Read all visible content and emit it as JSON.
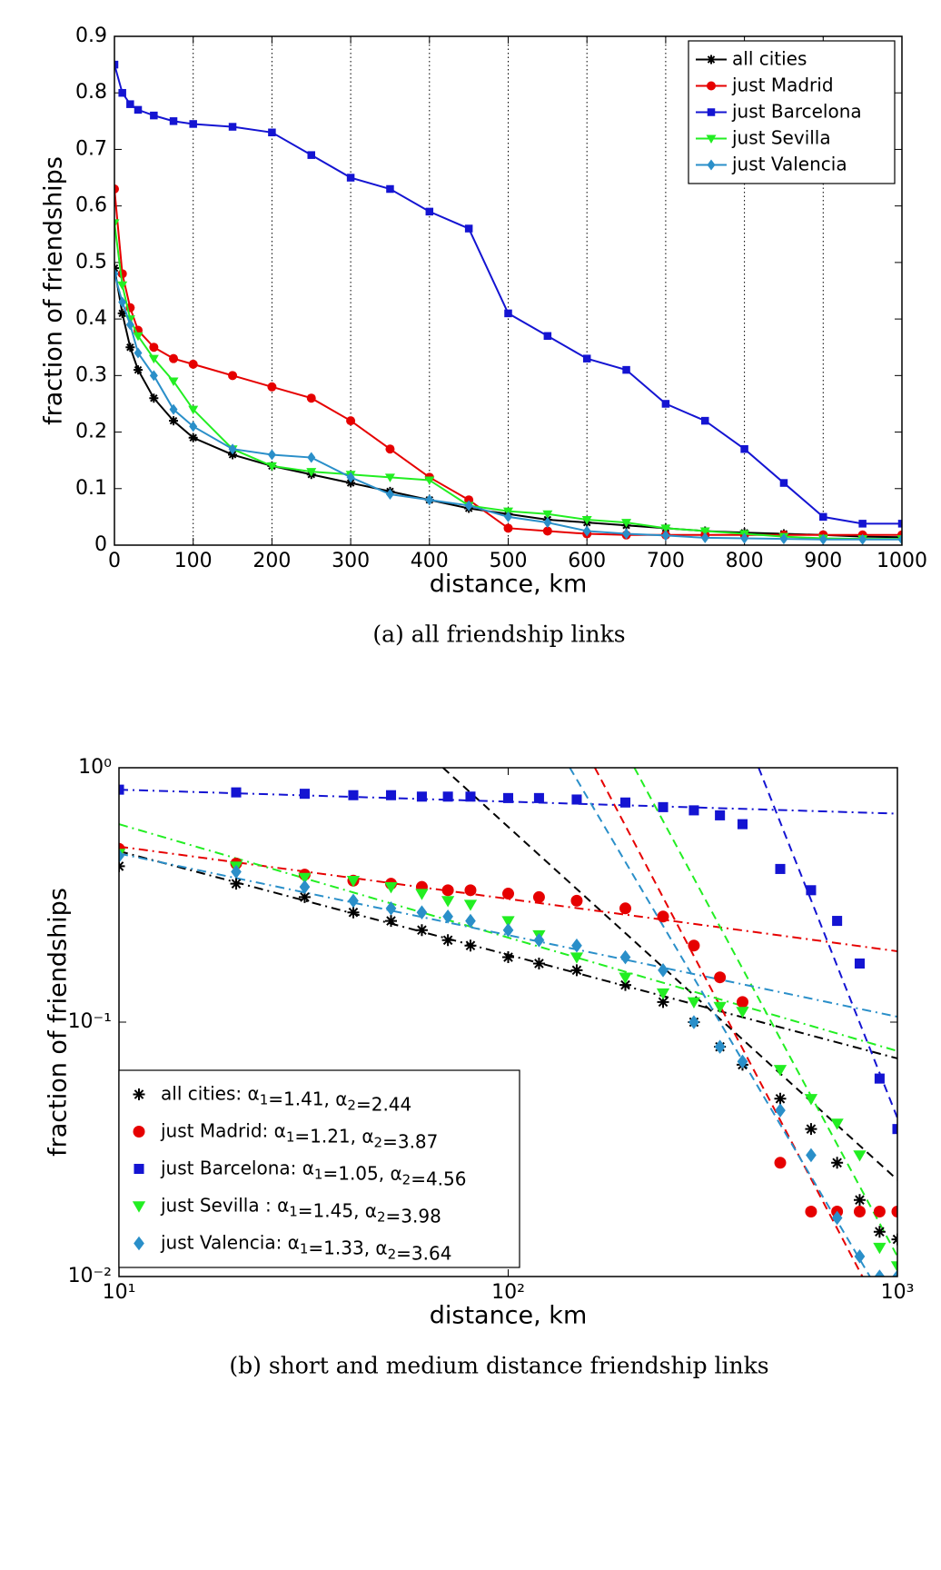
{
  "chart_data": [
    {
      "type": "line",
      "caption": "(a) all friendship links",
      "xlabel": "distance, km",
      "ylabel": "fraction of friendships",
      "xlim": [
        0,
        1000
      ],
      "ylim": [
        0,
        0.9
      ],
      "xticks": [
        0,
        100,
        200,
        300,
        400,
        500,
        600,
        700,
        800,
        900,
        1000
      ],
      "yticks": [
        0,
        0.1,
        0.2,
        0.3,
        0.4,
        0.5,
        0.6,
        0.7,
        0.8,
        0.9
      ],
      "grid": "x",
      "legend": "upper right",
      "x": [
        0,
        10,
        20,
        30,
        50,
        75,
        100,
        150,
        200,
        250,
        300,
        350,
        400,
        450,
        500,
        550,
        600,
        650,
        700,
        750,
        800,
        850,
        900,
        950,
        1000
      ],
      "series": [
        {
          "name": "all cities",
          "color": "#000000",
          "marker": "star",
          "values": [
            0.49,
            0.41,
            0.35,
            0.31,
            0.26,
            0.22,
            0.19,
            0.16,
            0.14,
            0.125,
            0.11,
            0.095,
            0.08,
            0.065,
            0.055,
            0.045,
            0.04,
            0.035,
            0.03,
            0.025,
            0.022,
            0.02,
            0.018,
            0.015,
            0.014
          ]
        },
        {
          "name": "just Madrid",
          "color": "#e60000",
          "marker": "circle",
          "values": [
            0.63,
            0.48,
            0.42,
            0.38,
            0.35,
            0.33,
            0.32,
            0.3,
            0.28,
            0.26,
            0.22,
            0.17,
            0.12,
            0.08,
            0.03,
            0.025,
            0.02,
            0.018,
            0.018,
            0.018,
            0.018,
            0.018,
            0.018,
            0.018,
            0.018
          ]
        },
        {
          "name": "just Barcelona",
          "color": "#1414d2",
          "marker": "square",
          "values": [
            0.85,
            0.8,
            0.78,
            0.77,
            0.76,
            0.75,
            0.745,
            0.74,
            0.73,
            0.69,
            0.65,
            0.63,
            0.59,
            0.56,
            0.41,
            0.37,
            0.33,
            0.31,
            0.25,
            0.22,
            0.17,
            0.11,
            0.05,
            0.038,
            0.038
          ]
        },
        {
          "name": "just Sevilla",
          "color": "#22ee22",
          "marker": "tri",
          "values": [
            0.57,
            0.46,
            0.4,
            0.37,
            0.33,
            0.29,
            0.24,
            0.17,
            0.14,
            0.13,
            0.125,
            0.12,
            0.115,
            0.07,
            0.06,
            0.055,
            0.045,
            0.04,
            0.03,
            0.025,
            0.02,
            0.015,
            0.012,
            0.011,
            0.011
          ]
        },
        {
          "name": "just Valencia",
          "color": "#2a8fc9",
          "marker": "diamond",
          "values": [
            0.48,
            0.43,
            0.39,
            0.34,
            0.3,
            0.24,
            0.21,
            0.17,
            0.16,
            0.155,
            0.12,
            0.09,
            0.08,
            0.07,
            0.05,
            0.04,
            0.025,
            0.02,
            0.017,
            0.013,
            0.012,
            0.011,
            0.01,
            0.01,
            0.01
          ]
        }
      ]
    },
    {
      "type": "scatter",
      "caption": "(b) short and medium distance friendship links",
      "xlabel": "distance, km",
      "ylabel": "fraction of friendships",
      "xscale": "log",
      "yscale": "log",
      "xlim": [
        10,
        1000
      ],
      "ylim": [
        0.01,
        1
      ],
      "xticks": [
        {
          "value": 10,
          "label": "10¹"
        },
        {
          "value": 100,
          "label": "10²"
        },
        {
          "value": 1000,
          "label": "10³"
        }
      ],
      "yticks": [
        {
          "value": 0.01,
          "label": "10⁻²"
        },
        {
          "value": 0.1,
          "label": "10⁻¹"
        },
        {
          "value": 1,
          "label": "10⁰"
        }
      ],
      "legend": "lower left",
      "x": [
        10,
        20,
        30,
        40,
        50,
        60,
        70,
        80,
        100,
        120,
        150,
        200,
        250,
        300,
        350,
        400,
        500,
        600,
        700,
        800,
        900,
        1000
      ],
      "series": [
        {
          "name": "all cities: α1=1.41, α2=2.44",
          "color": "#000000",
          "marker": "star",
          "values": [
            0.41,
            0.35,
            0.31,
            0.27,
            0.25,
            0.23,
            0.21,
            0.2,
            0.18,
            0.17,
            0.16,
            0.14,
            0.12,
            0.1,
            0.08,
            0.068,
            0.05,
            0.038,
            0.028,
            0.02,
            0.015,
            0.014
          ]
        },
        {
          "name": "just Madrid: α1=1.21, α2=3.87",
          "color": "#e60000",
          "marker": "circle",
          "values": [
            0.48,
            0.42,
            0.38,
            0.36,
            0.35,
            0.34,
            0.33,
            0.33,
            0.32,
            0.31,
            0.3,
            0.28,
            0.26,
            0.2,
            0.15,
            0.12,
            0.028,
            0.018,
            0.018,
            0.018,
            0.018,
            0.018
          ]
        },
        {
          "name": "just Barcelona: α1=1.05, α2=4.56",
          "color": "#1414d2",
          "marker": "square",
          "values": [
            0.82,
            0.8,
            0.79,
            0.78,
            0.78,
            0.77,
            0.77,
            0.77,
            0.76,
            0.76,
            0.75,
            0.73,
            0.7,
            0.68,
            0.65,
            0.6,
            0.4,
            0.33,
            0.25,
            0.17,
            0.06,
            0.038
          ]
        },
        {
          "name": "just Sevilla : α1=1.45, α2=3.98",
          "color": "#22ee22",
          "marker": "tri",
          "values": [
            0.46,
            0.41,
            0.37,
            0.36,
            0.34,
            0.32,
            0.3,
            0.29,
            0.25,
            0.22,
            0.18,
            0.15,
            0.13,
            0.12,
            0.115,
            0.11,
            0.065,
            0.05,
            0.04,
            0.03,
            0.013,
            0.011
          ]
        },
        {
          "name": "just Valencia: α1=1.33, α2=3.64",
          "color": "#2a8fc9",
          "marker": "diamond",
          "values": [
            0.45,
            0.39,
            0.34,
            0.3,
            0.28,
            0.27,
            0.26,
            0.25,
            0.23,
            0.21,
            0.2,
            0.18,
            0.16,
            0.1,
            0.08,
            0.07,
            0.045,
            0.03,
            0.017,
            0.012,
            0.01,
            0.01
          ]
        }
      ],
      "fits": [
        {
          "color": "#000000",
          "style": "dashdot",
          "x": [
            10,
            1000
          ],
          "values": [
            0.47,
            0.072
          ]
        },
        {
          "color": "#000000",
          "style": "dashed",
          "x": [
            68,
            1000
          ],
          "values": [
            1,
            0.024
          ]
        },
        {
          "color": "#e60000",
          "style": "dashdot",
          "x": [
            10,
            1000
          ],
          "values": [
            0.49,
            0.19
          ]
        },
        {
          "color": "#e60000",
          "style": "dashed",
          "x": [
            167,
            813
          ],
          "values": [
            1,
            0.01
          ]
        },
        {
          "color": "#1414d2",
          "style": "dashdot",
          "x": [
            10,
            1000
          ],
          "values": [
            0.82,
            0.66
          ]
        },
        {
          "color": "#1414d2",
          "style": "dashed",
          "x": [
            440,
            1000
          ],
          "values": [
            1,
            0.042
          ]
        },
        {
          "color": "#22ee22",
          "style": "dashdot",
          "x": [
            10,
            1000
          ],
          "values": [
            0.6,
            0.077
          ]
        },
        {
          "color": "#22ee22",
          "style": "dashed",
          "x": [
            211,
            1000
          ],
          "values": [
            1,
            0.012
          ]
        },
        {
          "color": "#2a8fc9",
          "style": "dashdot",
          "x": [
            10,
            1000
          ],
          "values": [
            0.46,
            0.105
          ]
        },
        {
          "color": "#2a8fc9",
          "style": "dashed",
          "x": [
            144,
            850
          ],
          "values": [
            1,
            0.01
          ]
        }
      ]
    }
  ]
}
